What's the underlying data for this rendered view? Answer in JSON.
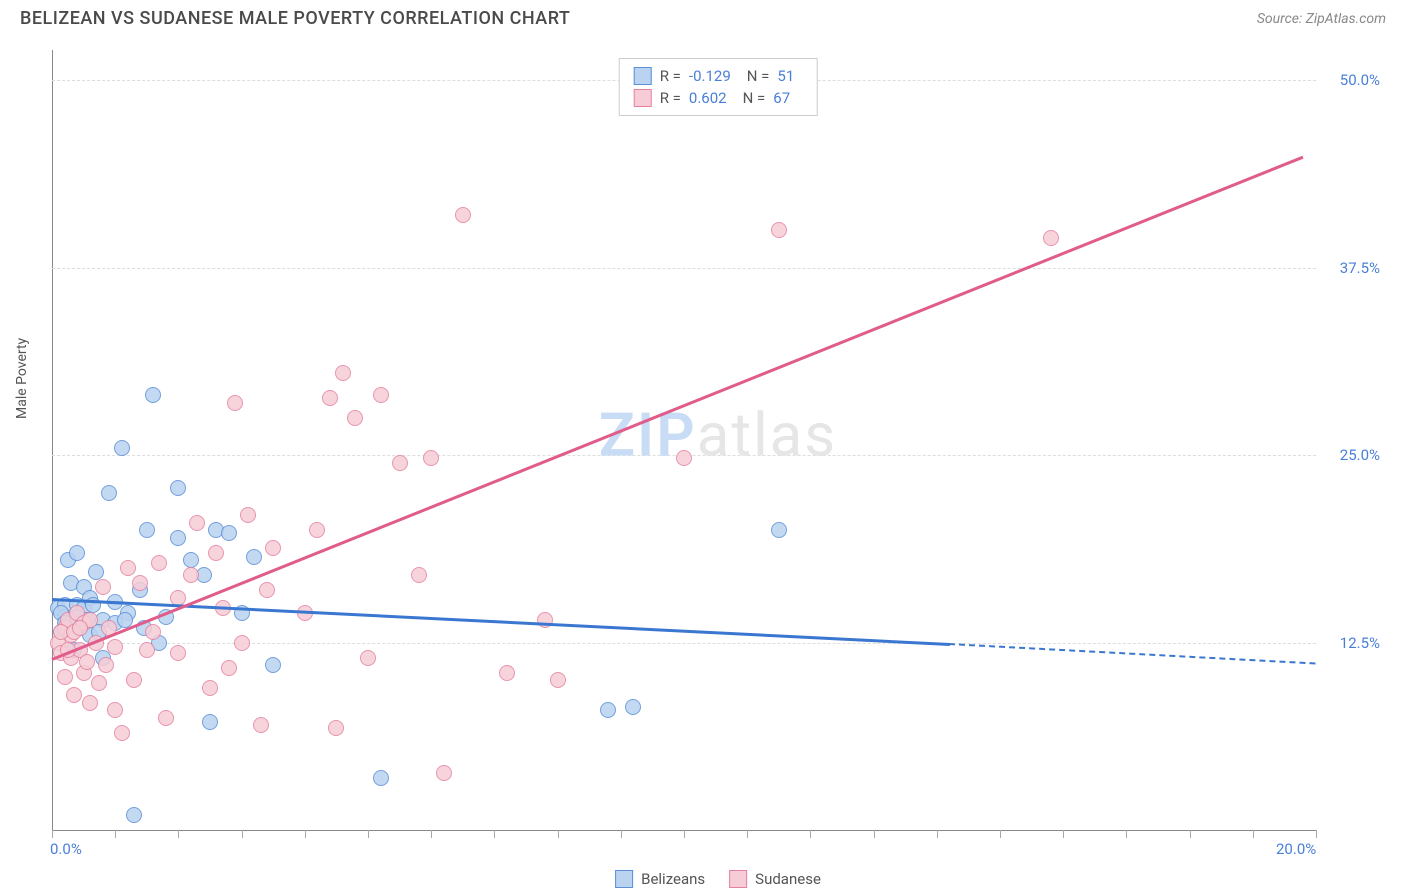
{
  "title": "BELIZEAN VS SUDANESE MALE POVERTY CORRELATION CHART",
  "source_label": "Source:",
  "source_name": "ZipAtlas.com",
  "watermark": {
    "left": "ZIP",
    "right": "atlas"
  },
  "y_axis_label": "Male Poverty",
  "chart": {
    "type": "scatter",
    "background_color": "#ffffff",
    "grid_color": "#dddddd",
    "axis_color": "#888888",
    "tick_label_color": "#4a7fd8",
    "xlim": [
      0,
      20
    ],
    "ylim": [
      0,
      52
    ],
    "x_ticks": [
      0,
      1,
      2,
      3,
      4,
      5,
      6,
      7,
      8,
      9,
      10,
      11,
      12,
      13,
      14,
      15,
      16,
      17,
      18,
      19,
      20
    ],
    "x_tick_labels": [
      {
        "v": 0,
        "t": "0.0%"
      },
      {
        "v": 20,
        "t": "20.0%"
      }
    ],
    "y_grid": [
      12.5,
      25.0,
      37.5,
      50.0
    ],
    "y_tick_labels": [
      {
        "v": 12.5,
        "t": "12.5%"
      },
      {
        "v": 25.0,
        "t": "25.0%"
      },
      {
        "v": 37.5,
        "t": "37.5%"
      },
      {
        "v": 50.0,
        "t": "50.0%"
      }
    ],
    "series": [
      {
        "name": "Belizeans",
        "fill": "#b9d3f0",
        "stroke": "#5b8fd6",
        "trend_color": "#3a77d0",
        "R": "-0.129",
        "N": "51",
        "trend": {
          "x1": 0,
          "y1": 15.5,
          "x2": 14.2,
          "y2": 12.5,
          "dash_to_x": 20,
          "dash_to_y": 11.2
        },
        "marker_size": 16,
        "points": [
          [
            0.1,
            14.8
          ],
          [
            0.15,
            13.2
          ],
          [
            0.2,
            15.0
          ],
          [
            0.2,
            14.2
          ],
          [
            0.25,
            18.0
          ],
          [
            0.3,
            14.0
          ],
          [
            0.3,
            16.5
          ],
          [
            0.35,
            12.0
          ],
          [
            0.4,
            18.5
          ],
          [
            0.4,
            15.0
          ],
          [
            0.45,
            13.5
          ],
          [
            0.5,
            14.8
          ],
          [
            0.5,
            16.2
          ],
          [
            0.6,
            15.5
          ],
          [
            0.6,
            13.0
          ],
          [
            0.7,
            17.2
          ],
          [
            0.8,
            14.0
          ],
          [
            0.8,
            11.5
          ],
          [
            0.9,
            22.5
          ],
          [
            1.0,
            15.2
          ],
          [
            1.0,
            13.8
          ],
          [
            1.1,
            25.5
          ],
          [
            1.2,
            14.5
          ],
          [
            1.3,
            1.0
          ],
          [
            1.4,
            16.0
          ],
          [
            1.5,
            20.0
          ],
          [
            1.6,
            29.0
          ],
          [
            1.7,
            12.5
          ],
          [
            1.8,
            14.2
          ],
          [
            2.0,
            22.8
          ],
          [
            2.0,
            19.5
          ],
          [
            2.2,
            18.0
          ],
          [
            2.4,
            17.0
          ],
          [
            2.5,
            7.2
          ],
          [
            2.6,
            20.0
          ],
          [
            2.8,
            19.8
          ],
          [
            3.0,
            14.5
          ],
          [
            3.2,
            18.2
          ],
          [
            3.5,
            11.0
          ],
          [
            5.2,
            3.5
          ],
          [
            8.8,
            8.0
          ],
          [
            9.2,
            8.2
          ],
          [
            11.5,
            20.0
          ],
          [
            0.15,
            14.5
          ],
          [
            0.2,
            13.8
          ],
          [
            0.4,
            14.2
          ],
          [
            0.55,
            14.0
          ],
          [
            0.65,
            15.0
          ],
          [
            0.75,
            13.2
          ],
          [
            1.15,
            14.0
          ],
          [
            1.45,
            13.5
          ]
        ]
      },
      {
        "name": "Sudanese",
        "fill": "#f6cdd6",
        "stroke": "#e582a0",
        "trend_color": "#e05c8a",
        "R": "0.602",
        "N": "67",
        "trend": {
          "x1": 0,
          "y1": 11.5,
          "x2": 19.8,
          "y2": 45.0
        },
        "marker_size": 16,
        "points": [
          [
            0.1,
            12.5
          ],
          [
            0.15,
            11.8
          ],
          [
            0.2,
            13.5
          ],
          [
            0.2,
            10.2
          ],
          [
            0.25,
            14.0
          ],
          [
            0.3,
            11.5
          ],
          [
            0.3,
            13.0
          ],
          [
            0.35,
            9.0
          ],
          [
            0.4,
            14.5
          ],
          [
            0.45,
            12.0
          ],
          [
            0.5,
            13.8
          ],
          [
            0.5,
            10.5
          ],
          [
            0.55,
            11.2
          ],
          [
            0.6,
            14.0
          ],
          [
            0.6,
            8.5
          ],
          [
            0.7,
            12.5
          ],
          [
            0.75,
            9.8
          ],
          [
            0.8,
            16.2
          ],
          [
            0.85,
            11.0
          ],
          [
            0.9,
            13.5
          ],
          [
            1.0,
            12.2
          ],
          [
            1.0,
            8.0
          ],
          [
            1.1,
            6.5
          ],
          [
            1.2,
            17.5
          ],
          [
            1.3,
            10.0
          ],
          [
            1.4,
            16.5
          ],
          [
            1.5,
            12.0
          ],
          [
            1.6,
            13.2
          ],
          [
            1.7,
            17.8
          ],
          [
            1.8,
            7.5
          ],
          [
            2.0,
            15.5
          ],
          [
            2.0,
            11.8
          ],
          [
            2.2,
            17.0
          ],
          [
            2.3,
            20.5
          ],
          [
            2.5,
            9.5
          ],
          [
            2.6,
            18.5
          ],
          [
            2.7,
            14.8
          ],
          [
            2.8,
            10.8
          ],
          [
            2.9,
            28.5
          ],
          [
            3.0,
            12.5
          ],
          [
            3.1,
            21.0
          ],
          [
            3.3,
            7.0
          ],
          [
            3.4,
            16.0
          ],
          [
            3.5,
            18.8
          ],
          [
            4.0,
            14.5
          ],
          [
            4.2,
            20.0
          ],
          [
            4.4,
            28.8
          ],
          [
            4.5,
            6.8
          ],
          [
            4.6,
            30.5
          ],
          [
            4.8,
            27.5
          ],
          [
            5.0,
            11.5
          ],
          [
            5.2,
            29.0
          ],
          [
            5.5,
            24.5
          ],
          [
            5.8,
            17.0
          ],
          [
            6.0,
            24.8
          ],
          [
            6.2,
            3.8
          ],
          [
            6.5,
            41.0
          ],
          [
            7.2,
            10.5
          ],
          [
            7.8,
            14.0
          ],
          [
            8.0,
            10.0
          ],
          [
            10.0,
            24.8
          ],
          [
            11.5,
            40.0
          ],
          [
            15.8,
            39.5
          ],
          [
            0.15,
            13.2
          ],
          [
            0.25,
            12.0
          ],
          [
            0.35,
            13.2
          ],
          [
            0.45,
            13.5
          ]
        ]
      }
    ],
    "legend_top": {
      "rows": [
        {
          "swatch_fill": "#b9d3f0",
          "swatch_stroke": "#5b8fd6",
          "r_label": "R =",
          "r": "-0.129",
          "n_label": "N =",
          "n": "51"
        },
        {
          "swatch_fill": "#f6cdd6",
          "swatch_stroke": "#e582a0",
          "r_label": "R =",
          "r": "0.602",
          "n_label": "N =",
          "n": "67"
        }
      ]
    },
    "legend_bottom": [
      {
        "swatch_fill": "#b9d3f0",
        "swatch_stroke": "#5b8fd6",
        "label": "Belizeans"
      },
      {
        "swatch_fill": "#f6cdd6",
        "swatch_stroke": "#e582a0",
        "label": "Sudanese"
      }
    ]
  }
}
